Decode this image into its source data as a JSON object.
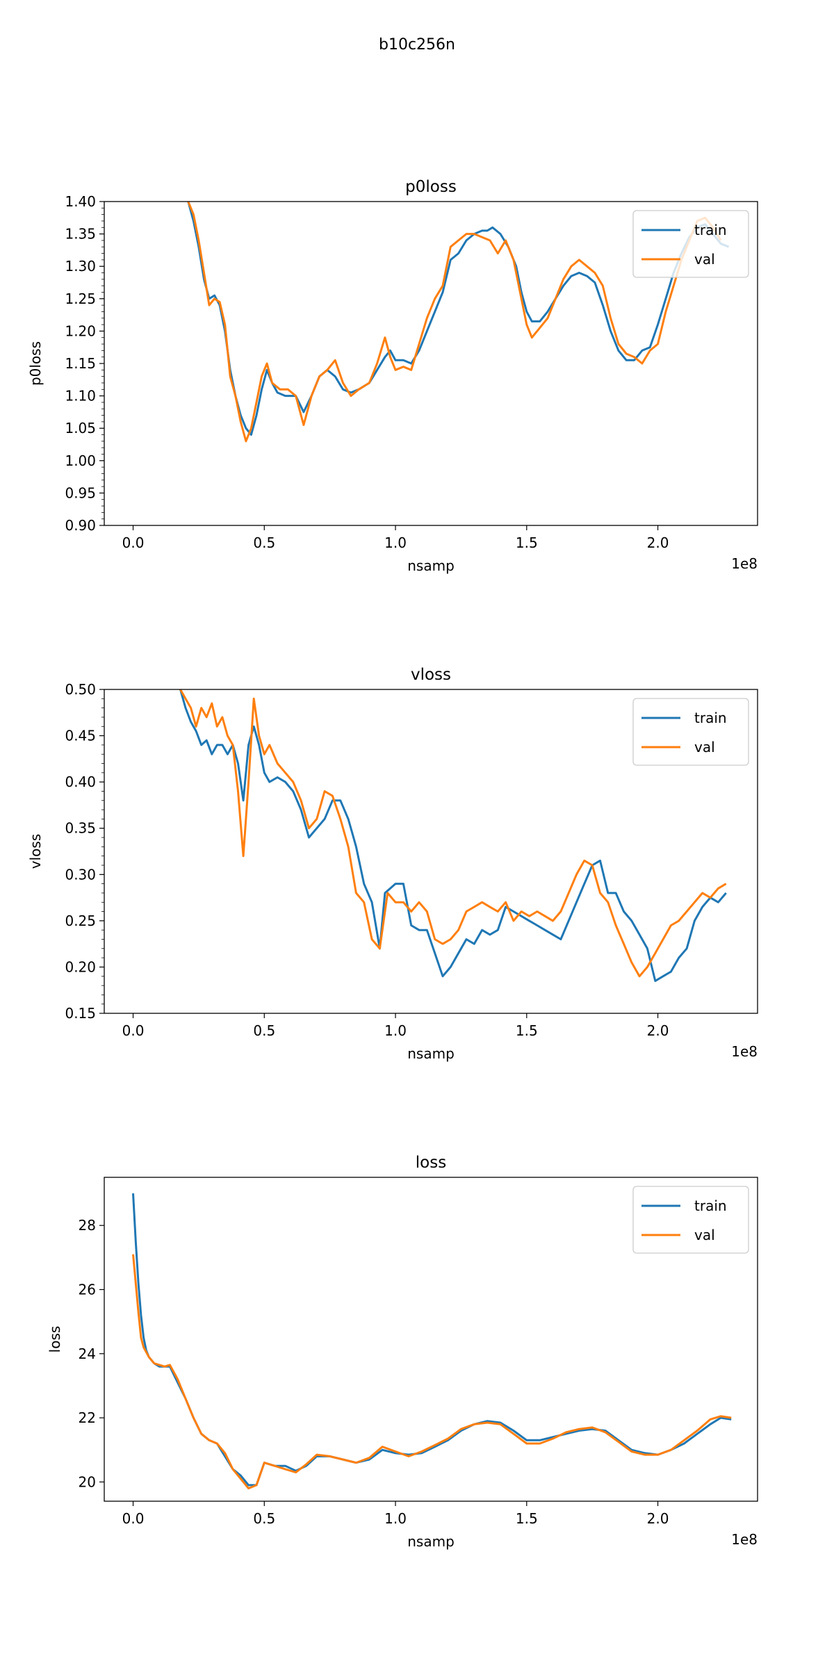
{
  "suptitle": "b10c256n",
  "colors": {
    "train": "#1f77b4",
    "val": "#ff7f0e"
  },
  "chart_data": [
    {
      "type": "line",
      "title": "p0loss",
      "xlabel": "nsamp",
      "ylabel": "p0loss",
      "x_offset_label": "1e8",
      "xlim": [
        -0.11,
        2.38
      ],
      "ylim": [
        0.9,
        1.4
      ],
      "xticks": [
        0.0,
        0.5,
        1.0,
        1.5,
        2.0
      ],
      "xtick_labels": [
        "0.0",
        "0.5",
        "1.0",
        "1.5",
        "2.0"
      ],
      "yticks": [
        0.9,
        0.95,
        1.0,
        1.05,
        1.1,
        1.15,
        1.2,
        1.25,
        1.3,
        1.35,
        1.4
      ],
      "ytick_labels": [
        "0.90",
        "0.95",
        "1.00",
        "1.05",
        "1.10",
        "1.15",
        "1.20",
        "1.25",
        "1.30",
        "1.35",
        "1.40"
      ],
      "legend_position": "upper right",
      "series": [
        {
          "name": "train",
          "x": [
            0.21,
            0.23,
            0.25,
            0.27,
            0.29,
            0.31,
            0.33,
            0.35,
            0.37,
            0.39,
            0.41,
            0.43,
            0.45,
            0.47,
            0.49,
            0.51,
            0.53,
            0.55,
            0.58,
            0.62,
            0.65,
            0.68,
            0.71,
            0.74,
            0.77,
            0.8,
            0.83,
            0.86,
            0.9,
            0.93,
            0.96,
            0.98,
            1.0,
            1.03,
            1.06,
            1.09,
            1.12,
            1.15,
            1.18,
            1.21,
            1.24,
            1.27,
            1.3,
            1.33,
            1.35,
            1.37,
            1.4,
            1.43,
            1.46,
            1.48,
            1.5,
            1.52,
            1.55,
            1.58,
            1.61,
            1.64,
            1.67,
            1.7,
            1.73,
            1.76,
            1.79,
            1.82,
            1.85,
            1.88,
            1.91,
            1.94,
            1.97,
            2.0,
            2.03,
            2.06,
            2.09,
            2.12,
            2.15,
            2.18,
            2.21,
            2.24,
            2.27
          ],
          "y": [
            1.4,
            1.37,
            1.33,
            1.28,
            1.25,
            1.255,
            1.24,
            1.2,
            1.14,
            1.1,
            1.07,
            1.05,
            1.04,
            1.07,
            1.11,
            1.14,
            1.12,
            1.105,
            1.1,
            1.1,
            1.075,
            1.1,
            1.13,
            1.14,
            1.13,
            1.11,
            1.105,
            1.11,
            1.12,
            1.14,
            1.16,
            1.17,
            1.155,
            1.155,
            1.15,
            1.17,
            1.2,
            1.23,
            1.26,
            1.31,
            1.32,
            1.34,
            1.35,
            1.355,
            1.355,
            1.36,
            1.35,
            1.33,
            1.3,
            1.26,
            1.23,
            1.215,
            1.215,
            1.23,
            1.25,
            1.27,
            1.285,
            1.29,
            1.285,
            1.275,
            1.24,
            1.2,
            1.17,
            1.155,
            1.155,
            1.17,
            1.175,
            1.21,
            1.25,
            1.29,
            1.32,
            1.345,
            1.36,
            1.365,
            1.35,
            1.335,
            1.33
          ]
        },
        {
          "name": "val",
          "x": [
            0.21,
            0.23,
            0.25,
            0.27,
            0.29,
            0.31,
            0.33,
            0.35,
            0.37,
            0.39,
            0.41,
            0.43,
            0.45,
            0.47,
            0.49,
            0.51,
            0.53,
            0.56,
            0.59,
            0.62,
            0.65,
            0.68,
            0.71,
            0.74,
            0.77,
            0.8,
            0.83,
            0.86,
            0.9,
            0.93,
            0.96,
            0.98,
            1.0,
            1.03,
            1.06,
            1.09,
            1.12,
            1.15,
            1.18,
            1.21,
            1.24,
            1.27,
            1.3,
            1.33,
            1.36,
            1.39,
            1.42,
            1.45,
            1.48,
            1.5,
            1.52,
            1.55,
            1.58,
            1.61,
            1.64,
            1.67,
            1.7,
            1.73,
            1.76,
            1.79,
            1.82,
            1.85,
            1.88,
            1.91,
            1.94,
            1.97,
            2.0,
            2.03,
            2.06,
            2.09,
            2.12,
            2.15,
            2.18,
            2.21,
            2.24
          ],
          "y": [
            1.4,
            1.38,
            1.34,
            1.29,
            1.24,
            1.25,
            1.245,
            1.21,
            1.13,
            1.1,
            1.06,
            1.03,
            1.05,
            1.09,
            1.13,
            1.15,
            1.12,
            1.11,
            1.11,
            1.1,
            1.055,
            1.1,
            1.13,
            1.14,
            1.155,
            1.12,
            1.1,
            1.11,
            1.12,
            1.15,
            1.19,
            1.16,
            1.14,
            1.145,
            1.14,
            1.18,
            1.22,
            1.25,
            1.27,
            1.33,
            1.34,
            1.35,
            1.35,
            1.345,
            1.34,
            1.32,
            1.34,
            1.31,
            1.25,
            1.21,
            1.19,
            1.205,
            1.22,
            1.25,
            1.28,
            1.3,
            1.31,
            1.3,
            1.29,
            1.27,
            1.22,
            1.18,
            1.165,
            1.16,
            1.15,
            1.17,
            1.18,
            1.23,
            1.27,
            1.31,
            1.34,
            1.37,
            1.375,
            1.36,
            1.34
          ]
        }
      ]
    },
    {
      "type": "line",
      "title": "vloss",
      "xlabel": "nsamp",
      "ylabel": "vloss",
      "x_offset_label": "1e8",
      "xlim": [
        -0.11,
        2.38
      ],
      "ylim": [
        0.15,
        0.5
      ],
      "xticks": [
        0.0,
        0.5,
        1.0,
        1.5,
        2.0
      ],
      "xtick_labels": [
        "0.0",
        "0.5",
        "1.0",
        "1.5",
        "2.0"
      ],
      "yticks": [
        0.15,
        0.2,
        0.25,
        0.3,
        0.35,
        0.4,
        0.45,
        0.5
      ],
      "ytick_labels": [
        "0.15",
        "0.20",
        "0.25",
        "0.30",
        "0.35",
        "0.40",
        "0.45",
        "0.50"
      ],
      "legend_position": "upper right",
      "series": [
        {
          "name": "train",
          "x": [
            0.18,
            0.2,
            0.22,
            0.24,
            0.26,
            0.28,
            0.3,
            0.32,
            0.34,
            0.36,
            0.38,
            0.4,
            0.42,
            0.44,
            0.46,
            0.48,
            0.5,
            0.52,
            0.55,
            0.58,
            0.61,
            0.64,
            0.67,
            0.7,
            0.73,
            0.76,
            0.79,
            0.82,
            0.85,
            0.88,
            0.91,
            0.94,
            0.96,
            0.98,
            1.0,
            1.03,
            1.06,
            1.09,
            1.12,
            1.15,
            1.18,
            1.21,
            1.24,
            1.27,
            1.3,
            1.33,
            1.36,
            1.39,
            1.42,
            1.45,
            1.48,
            1.51,
            1.54,
            1.57,
            1.6,
            1.63,
            1.66,
            1.69,
            1.72,
            1.75,
            1.78,
            1.81,
            1.84,
            1.87,
            1.9,
            1.93,
            1.96,
            1.99,
            2.02,
            2.05,
            2.08,
            2.11,
            2.14,
            2.17,
            2.2,
            2.23,
            2.26
          ],
          "y": [
            0.5,
            0.48,
            0.465,
            0.455,
            0.44,
            0.445,
            0.43,
            0.44,
            0.44,
            0.43,
            0.44,
            0.42,
            0.38,
            0.44,
            0.46,
            0.44,
            0.41,
            0.4,
            0.405,
            0.4,
            0.39,
            0.37,
            0.34,
            0.35,
            0.36,
            0.38,
            0.38,
            0.36,
            0.33,
            0.29,
            0.27,
            0.22,
            0.28,
            0.285,
            0.29,
            0.29,
            0.245,
            0.24,
            0.24,
            0.215,
            0.19,
            0.2,
            0.215,
            0.23,
            0.225,
            0.24,
            0.235,
            0.24,
            0.265,
            0.26,
            0.255,
            0.25,
            0.245,
            0.24,
            0.235,
            0.23,
            0.25,
            0.27,
            0.29,
            0.31,
            0.315,
            0.28,
            0.28,
            0.26,
            0.25,
            0.235,
            0.22,
            0.185,
            0.19,
            0.195,
            0.21,
            0.22,
            0.25,
            0.265,
            0.275,
            0.27,
            0.28
          ]
        },
        {
          "name": "val",
          "x": [
            0.18,
            0.2,
            0.22,
            0.24,
            0.26,
            0.28,
            0.3,
            0.32,
            0.34,
            0.36,
            0.38,
            0.4,
            0.42,
            0.44,
            0.46,
            0.48,
            0.5,
            0.52,
            0.55,
            0.58,
            0.61,
            0.64,
            0.67,
            0.7,
            0.73,
            0.76,
            0.79,
            0.82,
            0.85,
            0.88,
            0.91,
            0.94,
            0.97,
            1.0,
            1.03,
            1.06,
            1.09,
            1.12,
            1.15,
            1.18,
            1.21,
            1.24,
            1.27,
            1.3,
            1.33,
            1.36,
            1.39,
            1.42,
            1.45,
            1.48,
            1.51,
            1.54,
            1.57,
            1.6,
            1.63,
            1.66,
            1.69,
            1.72,
            1.75,
            1.78,
            1.81,
            1.84,
            1.87,
            1.9,
            1.93,
            1.96,
            1.99,
            2.02,
            2.05,
            2.08,
            2.11,
            2.14,
            2.17,
            2.2,
            2.23,
            2.26
          ],
          "y": [
            0.5,
            0.49,
            0.48,
            0.46,
            0.48,
            0.47,
            0.485,
            0.46,
            0.47,
            0.45,
            0.44,
            0.39,
            0.32,
            0.4,
            0.49,
            0.45,
            0.43,
            0.44,
            0.42,
            0.41,
            0.4,
            0.38,
            0.35,
            0.36,
            0.39,
            0.385,
            0.36,
            0.33,
            0.28,
            0.27,
            0.23,
            0.22,
            0.28,
            0.27,
            0.27,
            0.26,
            0.27,
            0.26,
            0.23,
            0.225,
            0.23,
            0.24,
            0.26,
            0.265,
            0.27,
            0.265,
            0.26,
            0.27,
            0.25,
            0.26,
            0.255,
            0.26,
            0.255,
            0.25,
            0.26,
            0.28,
            0.3,
            0.315,
            0.31,
            0.28,
            0.27,
            0.245,
            0.225,
            0.205,
            0.19,
            0.2,
            0.215,
            0.23,
            0.245,
            0.25,
            0.26,
            0.27,
            0.28,
            0.275,
            0.285,
            0.29
          ]
        }
      ]
    },
    {
      "type": "line",
      "title": "loss",
      "xlabel": "nsamp",
      "ylabel": "loss",
      "x_offset_label": "1e8",
      "xlim": [
        -0.11,
        2.38
      ],
      "ylim": [
        19.4,
        29.5
      ],
      "xticks": [
        0.0,
        0.5,
        1.0,
        1.5,
        2.0
      ],
      "xtick_labels": [
        "0.0",
        "0.5",
        "1.0",
        "1.5",
        "2.0"
      ],
      "yticks": [
        20,
        22,
        24,
        26,
        28
      ],
      "ytick_labels": [
        "20",
        "22",
        "24",
        "26",
        "28"
      ],
      "legend_position": "upper right",
      "series": [
        {
          "name": "train",
          "x": [
            0.0,
            0.01,
            0.02,
            0.03,
            0.04,
            0.05,
            0.06,
            0.08,
            0.1,
            0.12,
            0.14,
            0.17,
            0.2,
            0.23,
            0.26,
            0.29,
            0.32,
            0.35,
            0.38,
            0.41,
            0.44,
            0.47,
            0.5,
            0.54,
            0.58,
            0.62,
            0.66,
            0.7,
            0.75,
            0.8,
            0.85,
            0.9,
            0.95,
            1.0,
            1.05,
            1.1,
            1.15,
            1.2,
            1.25,
            1.3,
            1.35,
            1.4,
            1.45,
            1.5,
            1.55,
            1.6,
            1.65,
            1.7,
            1.75,
            1.8,
            1.85,
            1.9,
            1.95,
            2.0,
            2.05,
            2.1,
            2.15,
            2.2,
            2.24,
            2.28
          ],
          "y": [
            29.0,
            27.5,
            26.2,
            25.2,
            24.5,
            24.1,
            23.9,
            23.7,
            23.6,
            23.6,
            23.6,
            23.1,
            22.6,
            22.0,
            21.5,
            21.3,
            21.2,
            20.8,
            20.4,
            20.2,
            19.9,
            19.9,
            20.6,
            20.5,
            20.5,
            20.35,
            20.5,
            20.8,
            20.8,
            20.7,
            20.6,
            20.7,
            21.0,
            20.9,
            20.85,
            20.9,
            21.1,
            21.3,
            21.6,
            21.8,
            21.9,
            21.85,
            21.6,
            21.3,
            21.3,
            21.4,
            21.5,
            21.6,
            21.65,
            21.6,
            21.3,
            21.0,
            20.9,
            20.85,
            21.0,
            21.2,
            21.5,
            21.8,
            22.0,
            21.95
          ]
        },
        {
          "name": "val",
          "x": [
            0.0,
            0.01,
            0.02,
            0.03,
            0.04,
            0.06,
            0.08,
            0.1,
            0.12,
            0.14,
            0.17,
            0.2,
            0.23,
            0.26,
            0.29,
            0.32,
            0.35,
            0.38,
            0.41,
            0.44,
            0.47,
            0.5,
            0.54,
            0.58,
            0.62,
            0.66,
            0.7,
            0.75,
            0.8,
            0.85,
            0.9,
            0.95,
            1.0,
            1.05,
            1.1,
            1.15,
            1.2,
            1.25,
            1.3,
            1.35,
            1.4,
            1.45,
            1.5,
            1.55,
            1.6,
            1.65,
            1.7,
            1.75,
            1.8,
            1.85,
            1.9,
            1.95,
            2.0,
            2.05,
            2.1,
            2.15,
            2.2,
            2.24,
            2.28
          ],
          "y": [
            27.1,
            26.2,
            25.3,
            24.5,
            24.2,
            23.9,
            23.7,
            23.65,
            23.6,
            23.65,
            23.2,
            22.6,
            22.0,
            21.5,
            21.3,
            21.2,
            20.9,
            20.4,
            20.1,
            19.8,
            19.9,
            20.6,
            20.5,
            20.4,
            20.3,
            20.55,
            20.85,
            20.8,
            20.7,
            20.6,
            20.75,
            21.1,
            20.95,
            20.8,
            20.95,
            21.15,
            21.35,
            21.65,
            21.8,
            21.85,
            21.8,
            21.5,
            21.2,
            21.2,
            21.35,
            21.55,
            21.65,
            21.7,
            21.55,
            21.25,
            20.95,
            20.85,
            20.85,
            21.0,
            21.3,
            21.6,
            21.95,
            22.05,
            22.0
          ]
        }
      ]
    }
  ]
}
